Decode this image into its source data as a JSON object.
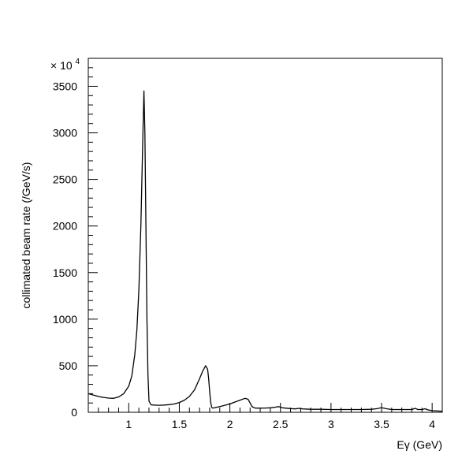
{
  "chart_data": {
    "type": "line",
    "title": "",
    "xlabel": "Eγ (GeV)",
    "ylabel": "collimated beam rate (/GeV/s)",
    "y_multiplier_label": "× 10",
    "y_multiplier_exponent": "4",
    "xlim": [
      0.6,
      4.1
    ],
    "ylim": [
      0,
      3800
    ],
    "x_ticks": [
      {
        "value": 1,
        "label": "1"
      },
      {
        "value": 1.5,
        "label": "1.5"
      },
      {
        "value": 2,
        "label": "2"
      },
      {
        "value": 2.5,
        "label": "2.5"
      },
      {
        "value": 3,
        "label": "3"
      },
      {
        "value": 3.5,
        "label": "3.5"
      },
      {
        "value": 4,
        "label": "4"
      }
    ],
    "y_ticks": [
      {
        "value": 0,
        "label": "0"
      },
      {
        "value": 500,
        "label": "500"
      },
      {
        "value": 1000,
        "label": "1000"
      },
      {
        "value": 1500,
        "label": "1500"
      },
      {
        "value": 2000,
        "label": "2000"
      },
      {
        "value": 2500,
        "label": "2500"
      },
      {
        "value": 3000,
        "label": "3000"
      },
      {
        "value": 3500,
        "label": "3500"
      }
    ],
    "x_minor_step": 0.1,
    "y_minor_step": 100,
    "grid": false,
    "legend": "none",
    "series": [
      {
        "name": "",
        "x": [
          0.6,
          0.65,
          0.7,
          0.75,
          0.8,
          0.85,
          0.9,
          0.95,
          1.0,
          1.03,
          1.06,
          1.08,
          1.1,
          1.12,
          1.13,
          1.14,
          1.15,
          1.16,
          1.17,
          1.18,
          1.19,
          1.2,
          1.22,
          1.25,
          1.3,
          1.35,
          1.4,
          1.45,
          1.5,
          1.55,
          1.6,
          1.65,
          1.7,
          1.73,
          1.76,
          1.78,
          1.79,
          1.8,
          1.81,
          1.82,
          1.83,
          1.85,
          1.9,
          1.95,
          2.0,
          2.05,
          2.1,
          2.15,
          2.18,
          2.2,
          2.22,
          2.25,
          2.3,
          2.35,
          2.4,
          2.45,
          2.48,
          2.52,
          2.6,
          2.65,
          2.68,
          2.72,
          2.8,
          2.9,
          3.0,
          3.1,
          3.2,
          3.3,
          3.4,
          3.45,
          3.5,
          3.55,
          3.6,
          3.7,
          3.8,
          3.83,
          3.86,
          3.9,
          3.93,
          3.96,
          4.0,
          4.1
        ],
        "y": [
          200,
          185,
          170,
          160,
          152,
          150,
          165,
          200,
          280,
          390,
          620,
          880,
          1300,
          2000,
          2500,
          3000,
          3450,
          3000,
          2000,
          1000,
          400,
          120,
          80,
          78,
          75,
          78,
          82,
          90,
          105,
          130,
          170,
          240,
          360,
          440,
          500,
          460,
          360,
          230,
          110,
          55,
          45,
          50,
          62,
          75,
          90,
          110,
          130,
          150,
          140,
          100,
          60,
          45,
          45,
          46,
          48,
          55,
          62,
          48,
          40,
          36,
          42,
          36,
          32,
          32,
          30,
          30,
          30,
          30,
          32,
          38,
          50,
          38,
          30,
          30,
          30,
          42,
          30,
          30,
          38,
          25,
          18,
          12
        ]
      }
    ]
  }
}
